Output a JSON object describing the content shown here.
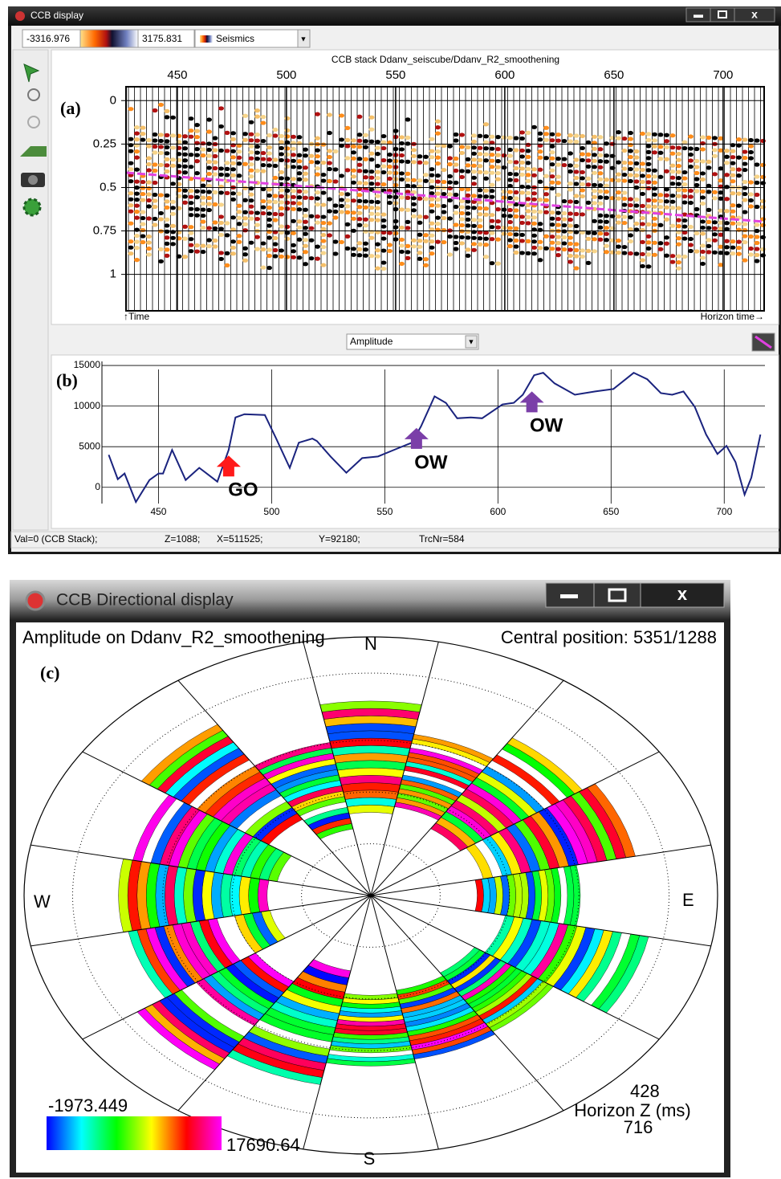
{
  "window_1": {
    "title": "CCB display",
    "range_min": -3316.976,
    "range_max": 3175.831,
    "colortable": "Seismics",
    "panel_a": {
      "label": "(a)",
      "title": "CCB stack Ddanv_seiscube/Ddanv_R2_smoothening",
      "xlim": [
        426.5,
        718.8
      ],
      "xticks": [
        450,
        500,
        550,
        600,
        650,
        700
      ],
      "ylim": [
        -0.08,
        1.21
      ],
      "y_inverted": true,
      "yticks": [
        0,
        0.25,
        0.5,
        0.75,
        1
      ],
      "y_axis_label": "↑Time",
      "x_axis_label": "Horizon time→"
    },
    "attribute": "Amplitude",
    "panel_b": {
      "label": "(b)",
      "type": "line",
      "color": "#1a237e",
      "x": [
        428,
        432,
        435,
        440,
        446,
        450,
        452,
        456,
        462,
        468,
        476,
        481,
        484,
        488,
        497,
        502,
        508,
        512,
        518,
        520,
        526,
        533,
        540,
        547,
        554,
        562,
        566,
        572,
        577,
        582,
        588,
        593,
        602,
        607,
        611,
        616,
        620,
        625,
        634,
        643,
        651,
        660,
        666,
        672,
        677,
        682,
        687,
        692,
        697,
        701,
        705,
        709,
        712,
        716
      ],
      "values": [
        4000,
        1000,
        1700,
        -1800,
        900,
        1700,
        1700,
        4600,
        900,
        2400,
        700,
        4600,
        8600,
        9000,
        8900,
        6000,
        2400,
        5500,
        6000,
        5700,
        3800,
        1800,
        3600,
        3800,
        4600,
        5500,
        7500,
        11200,
        10400,
        8500,
        8600,
        8500,
        10200,
        10400,
        11400,
        13800,
        14100,
        12800,
        11400,
        11800,
        12100,
        14100,
        13300,
        11600,
        11400,
        11800,
        9900,
        6500,
        4100,
        5100,
        3100,
        -900,
        1200,
        6500
      ],
      "xlim": [
        425,
        718
      ],
      "xticks": [
        450,
        500,
        550,
        600,
        650,
        700
      ],
      "ylim": [
        -2000,
        15500
      ],
      "yticks": [
        0,
        5000,
        10000,
        15000
      ],
      "grid": true,
      "annotations": [
        {
          "text": "GO",
          "x": 481,
          "y": 4100,
          "color": "#ff1a1a"
        },
        {
          "text": "OW",
          "x": 564,
          "y": 7500,
          "color": "#7b3fa8"
        },
        {
          "text": "OW",
          "x": 615,
          "y": 12000,
          "color": "#7b3fa8"
        }
      ]
    },
    "status": [
      "Val=0 (CCB Stack);",
      "Z=1088;",
      "X=511525;",
      "Y=92180;",
      "TrcNr=584"
    ]
  },
  "window_2": {
    "title": "CCB Directional display",
    "attribute_label": "Amplitude on Ddanv_R2_smoothening",
    "central_position": "Central position: 5351/1288",
    "label": "(c)",
    "directions": [
      "N",
      "E",
      "S",
      "W"
    ],
    "colorbar_min": -1973.449,
    "colorbar_max": 17690.64,
    "horizon_z_label": "Horizon Z (ms)",
    "horizon_z_min": 428,
    "horizon_z_max": 716
  }
}
